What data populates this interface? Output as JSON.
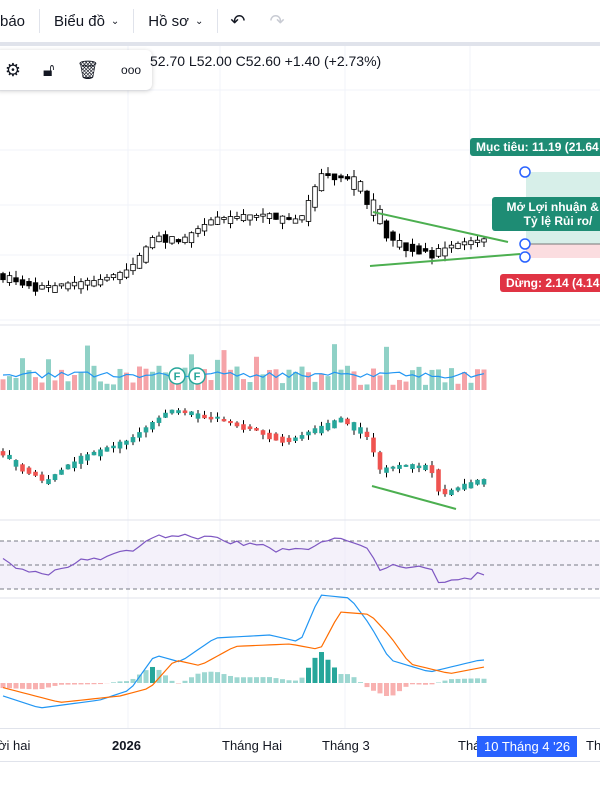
{
  "toolbar": {
    "partial_item": "báo",
    "chart_menu": "Biểu đồ",
    "profile_menu": "Hồ sơ",
    "undo_icon": "undo-icon",
    "redo_icon": "redo-icon"
  },
  "legend": {
    "ohlc": "52.70 L52.00 C52.60 +1.40 (+2.73%)"
  },
  "floating_toolbar": {
    "icons": [
      "gear-icon",
      "unlock-icon",
      "trash-icon",
      "more-icon"
    ]
  },
  "position_tool": {
    "target": "Mục tiêu: 11.19 (21.64",
    "open_line1": "Mở Lợi nhuận & T",
    "open_line2": "Tỷ lệ Rủi ro/",
    "stop": "Dừng: 2.14 (4.14"
  },
  "markers": [
    "F",
    "F"
  ],
  "time_axis": {
    "labels": [
      "ời hai",
      "2026",
      "Tháng Hai",
      "Tháng 3",
      "Thá",
      "Th"
    ],
    "selected": "10 Tháng 4 '26"
  },
  "colors": {
    "up": "#26a69a",
    "down": "#ef5350",
    "trend": "#4caf50",
    "target": "#1e8c74",
    "stop": "#e03444",
    "selected": "#2962ff"
  }
}
